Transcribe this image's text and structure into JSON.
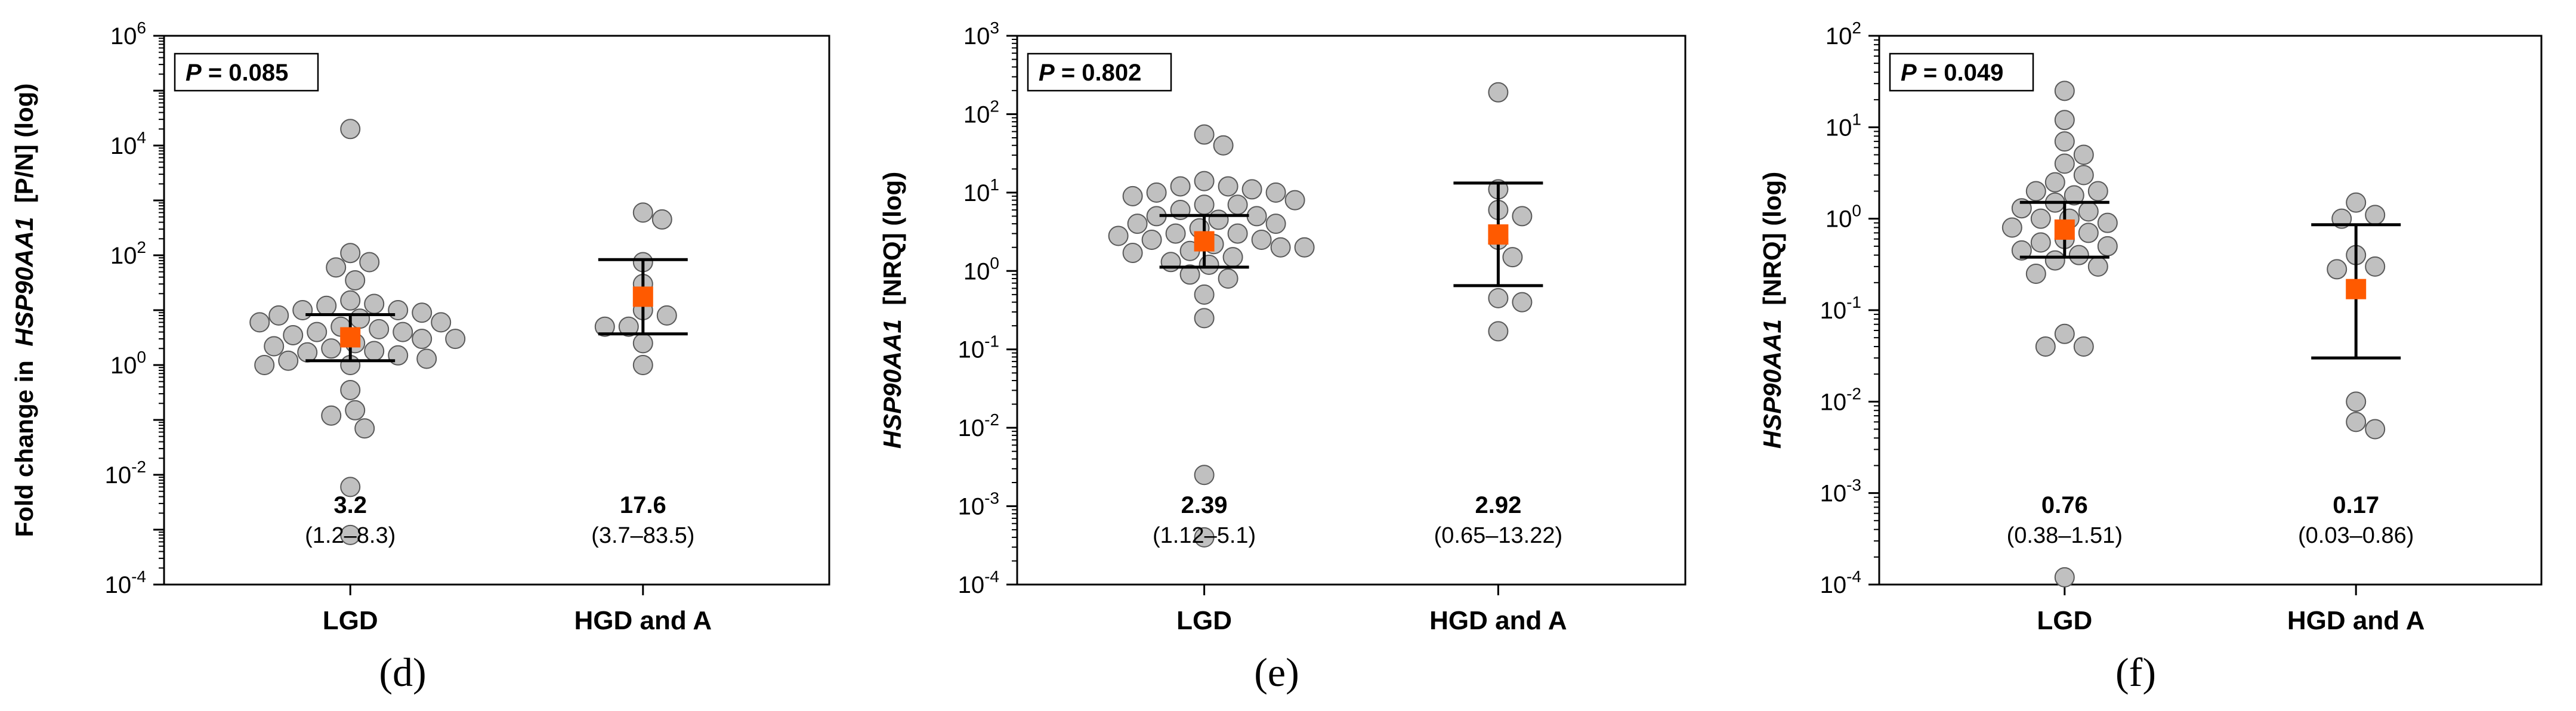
{
  "chart_data": [
    {
      "type": "scatter",
      "panel_label": "(d)",
      "p_label": "P",
      "p_value_text": "= 0.085",
      "ylabel_prefix": "Fold change in",
      "ylabel_gene": "HSP90AA1",
      "ylabel_suffix": "[P/N] (log)",
      "y_scale": "log",
      "ylim_exp": [
        -4,
        6
      ],
      "y_tick_exps": [
        -4,
        -2,
        0,
        2,
        4,
        6
      ],
      "categories": [
        "LGD",
        "HGD and A"
      ],
      "groups": [
        {
          "name": "LGD",
          "median_text": "3.2",
          "ci_text": "(1.2–8.3)",
          "median": 3.2,
          "ci_low": 1.2,
          "ci_high": 8.3,
          "points": [
            20000,
            110,
            75,
            60,
            35,
            15,
            13,
            12,
            10,
            10,
            9,
            8,
            7,
            6,
            6,
            5,
            4.5,
            4,
            4,
            3.5,
            3,
            3,
            2.5,
            2.2,
            2,
            1.8,
            1.7,
            1.5,
            1.3,
            1.2,
            1,
            1,
            0.35,
            0.15,
            0.12,
            0.07,
            0.006,
            0.0008
          ]
        },
        {
          "name": "HGD and A",
          "median_text": "17.6",
          "ci_text": "(3.7–83.5)",
          "median": 17.6,
          "ci_low": 3.7,
          "ci_high": 83.5,
          "points": [
            600,
            450,
            75,
            30,
            10,
            8,
            5,
            5,
            2.5,
            1
          ]
        }
      ]
    },
    {
      "type": "scatter",
      "panel_label": "(e)",
      "p_label": "P",
      "p_value_text": "= 0.802",
      "ylabel_prefix": "",
      "ylabel_gene": "HSP90AA1",
      "ylabel_suffix": "[NRQ] (log)",
      "y_scale": "log",
      "ylim_exp": [
        -4,
        3
      ],
      "y_tick_exps": [
        -4,
        -3,
        -2,
        -1,
        0,
        1,
        2,
        3
      ],
      "categories": [
        "LGD",
        "HGD and A"
      ],
      "groups": [
        {
          "name": "LGD",
          "median_text": "2.39",
          "ci_text": "(1.12–5.1)",
          "median": 2.39,
          "ci_low": 1.12,
          "ci_high": 5.1,
          "points": [
            55,
            40,
            14,
            12,
            12,
            11,
            10,
            10,
            9,
            8,
            7,
            7,
            6,
            5,
            5,
            4.5,
            4,
            4,
            3.5,
            3,
            3,
            2.8,
            2.5,
            2.5,
            2.2,
            2,
            2,
            1.8,
            1.7,
            1.5,
            1.3,
            1.2,
            0.9,
            0.8,
            0.5,
            0.25,
            0.0025,
            0.0004
          ]
        },
        {
          "name": "HGD and A",
          "median_text": "2.92",
          "ci_text": "(0.65–13.22)",
          "median": 2.92,
          "ci_low": 0.65,
          "ci_high": 13.22,
          "points": [
            190,
            11,
            6,
            5,
            2.5,
            1.5,
            0.45,
            0.4,
            0.17
          ]
        }
      ]
    },
    {
      "type": "scatter",
      "panel_label": "(f)",
      "p_label": "P",
      "p_value_text": "= 0.049",
      "ylabel_prefix": "",
      "ylabel_gene": "HSP90AA1",
      "ylabel_suffix": "[NRQ] (log)",
      "y_scale": "log",
      "ylim_exp": [
        -4,
        2
      ],
      "y_tick_exps": [
        -4,
        -3,
        -2,
        -1,
        0,
        1,
        2
      ],
      "categories": [
        "LGD",
        "HGD and A"
      ],
      "groups": [
        {
          "name": "LGD",
          "median_text": "0.76",
          "ci_text": "(0.38–1.51)",
          "median": 0.76,
          "ci_low": 0.38,
          "ci_high": 1.51,
          "points": [
            25,
            12,
            7,
            5,
            4,
            3,
            2.5,
            2,
            2,
            1.8,
            1.5,
            1.3,
            1.2,
            1,
            1,
            0.9,
            0.8,
            0.7,
            0.6,
            0.55,
            0.5,
            0.45,
            0.4,
            0.35,
            0.3,
            0.25,
            0.055,
            0.04,
            0.04,
            0.00012
          ]
        },
        {
          "name": "HGD and A",
          "median_text": "0.17",
          "ci_text": "(0.03–0.86)",
          "median": 0.17,
          "ci_low": 0.03,
          "ci_high": 0.86,
          "points": [
            1.5,
            1.1,
            1,
            0.4,
            0.28,
            0.3,
            0.01,
            0.006,
            0.005
          ]
        }
      ]
    }
  ],
  "colors": {
    "point_fill": "#c0c0c0",
    "point_stroke": "#595959",
    "median_marker": "#ff5a00",
    "axis": "#000000"
  }
}
